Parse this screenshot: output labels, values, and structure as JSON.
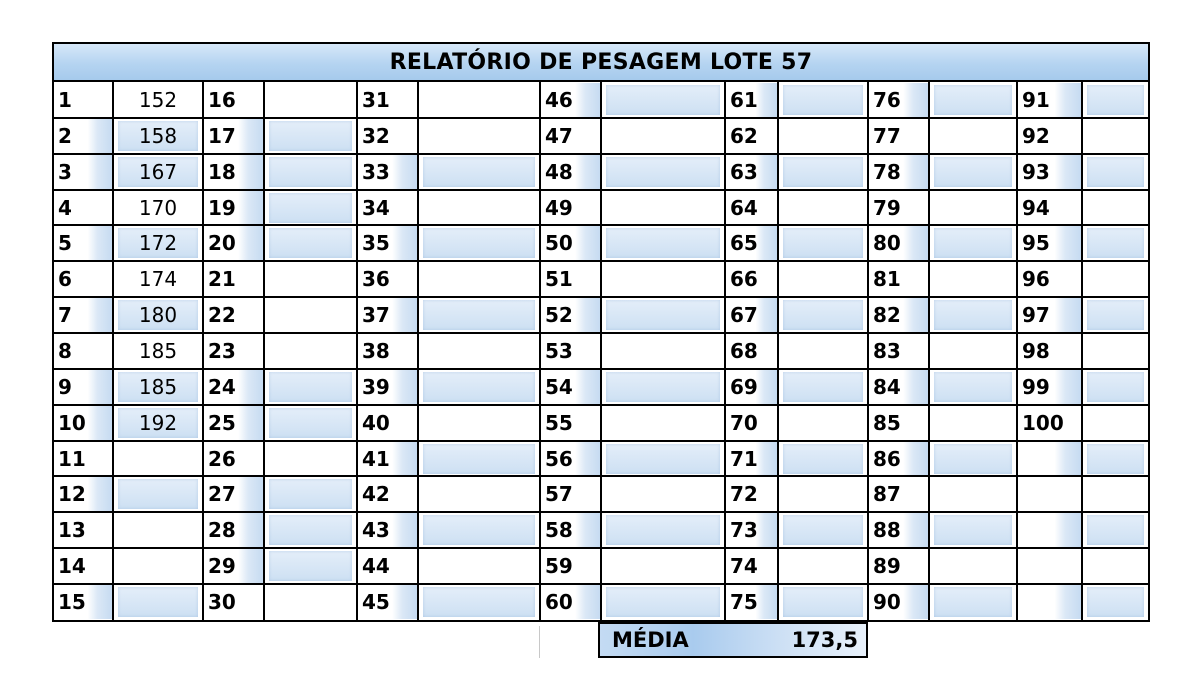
{
  "report": {
    "title": "RELATÓRIO DE PESAGEM LOTE 57",
    "columns": [
      {
        "rows": [
          {
            "n": "1",
            "w": "152",
            "shade": false
          },
          {
            "n": "2",
            "w": "158",
            "shade": true
          },
          {
            "n": "3",
            "w": "167",
            "shade": true
          },
          {
            "n": "4",
            "w": "170",
            "shade": false
          },
          {
            "n": "5",
            "w": "172",
            "shade": true
          },
          {
            "n": "6",
            "w": "174",
            "shade": false
          },
          {
            "n": "7",
            "w": "180",
            "shade": true
          },
          {
            "n": "8",
            "w": "185",
            "shade": false
          },
          {
            "n": "9",
            "w": "185",
            "shade": true
          },
          {
            "n": "10",
            "w": "192",
            "shade": true
          },
          {
            "n": "11",
            "w": "",
            "shade": false
          },
          {
            "n": "12",
            "w": "",
            "shade": true
          },
          {
            "n": "13",
            "w": "",
            "shade": false
          },
          {
            "n": "14",
            "w": "",
            "shade": false
          },
          {
            "n": "15",
            "w": "",
            "shade": true
          }
        ]
      },
      {
        "rows": [
          {
            "n": "16",
            "w": "",
            "shade": false
          },
          {
            "n": "17",
            "w": "",
            "shade": true
          },
          {
            "n": "18",
            "w": "",
            "shade": true
          },
          {
            "n": "19",
            "w": "",
            "shade": true
          },
          {
            "n": "20",
            "w": "",
            "shade": true
          },
          {
            "n": "21",
            "w": "",
            "shade": false
          },
          {
            "n": "22",
            "w": "",
            "shade": false
          },
          {
            "n": "23",
            "w": "",
            "shade": false
          },
          {
            "n": "24",
            "w": "",
            "shade": true
          },
          {
            "n": "25",
            "w": "",
            "shade": true
          },
          {
            "n": "26",
            "w": "",
            "shade": false
          },
          {
            "n": "27",
            "w": "",
            "shade": true
          },
          {
            "n": "28",
            "w": "",
            "shade": true
          },
          {
            "n": "29",
            "w": "",
            "shade": true
          },
          {
            "n": "30",
            "w": "",
            "shade": false
          }
        ]
      },
      {
        "rows": [
          {
            "n": "31",
            "w": "",
            "shade": false
          },
          {
            "n": "32",
            "w": "",
            "shade": false
          },
          {
            "n": "33",
            "w": "",
            "shade": true
          },
          {
            "n": "34",
            "w": "",
            "shade": false
          },
          {
            "n": "35",
            "w": "",
            "shade": true
          },
          {
            "n": "36",
            "w": "",
            "shade": false
          },
          {
            "n": "37",
            "w": "",
            "shade": true
          },
          {
            "n": "38",
            "w": "",
            "shade": false
          },
          {
            "n": "39",
            "w": "",
            "shade": true
          },
          {
            "n": "40",
            "w": "",
            "shade": false
          },
          {
            "n": "41",
            "w": "",
            "shade": true
          },
          {
            "n": "42",
            "w": "",
            "shade": false
          },
          {
            "n": "43",
            "w": "",
            "shade": true
          },
          {
            "n": "44",
            "w": "",
            "shade": false
          },
          {
            "n": "45",
            "w": "",
            "shade": true
          }
        ]
      },
      {
        "rows": [
          {
            "n": "46",
            "w": "",
            "shade": true
          },
          {
            "n": "47",
            "w": "",
            "shade": false
          },
          {
            "n": "48",
            "w": "",
            "shade": true
          },
          {
            "n": "49",
            "w": "",
            "shade": false
          },
          {
            "n": "50",
            "w": "",
            "shade": true
          },
          {
            "n": "51",
            "w": "",
            "shade": false
          },
          {
            "n": "52",
            "w": "",
            "shade": true
          },
          {
            "n": "53",
            "w": "",
            "shade": false
          },
          {
            "n": "54",
            "w": "",
            "shade": true
          },
          {
            "n": "55",
            "w": "",
            "shade": false
          },
          {
            "n": "56",
            "w": "",
            "shade": true
          },
          {
            "n": "57",
            "w": "",
            "shade": false
          },
          {
            "n": "58",
            "w": "",
            "shade": true
          },
          {
            "n": "59",
            "w": "",
            "shade": false
          },
          {
            "n": "60",
            "w": "",
            "shade": true
          }
        ]
      },
      {
        "rows": [
          {
            "n": "61",
            "w": "",
            "shade": true
          },
          {
            "n": "62",
            "w": "",
            "shade": false
          },
          {
            "n": "63",
            "w": "",
            "shade": true
          },
          {
            "n": "64",
            "w": "",
            "shade": false
          },
          {
            "n": "65",
            "w": "",
            "shade": true
          },
          {
            "n": "66",
            "w": "",
            "shade": false
          },
          {
            "n": "67",
            "w": "",
            "shade": true
          },
          {
            "n": "68",
            "w": "",
            "shade": false
          },
          {
            "n": "69",
            "w": "",
            "shade": true
          },
          {
            "n": "70",
            "w": "",
            "shade": false
          },
          {
            "n": "71",
            "w": "",
            "shade": true
          },
          {
            "n": "72",
            "w": "",
            "shade": false
          },
          {
            "n": "73",
            "w": "",
            "shade": true
          },
          {
            "n": "74",
            "w": "",
            "shade": false
          },
          {
            "n": "75",
            "w": "",
            "shade": true
          }
        ]
      },
      {
        "rows": [
          {
            "n": "76",
            "w": "",
            "shade": true
          },
          {
            "n": "77",
            "w": "",
            "shade": false
          },
          {
            "n": "78",
            "w": "",
            "shade": true
          },
          {
            "n": "79",
            "w": "",
            "shade": false
          },
          {
            "n": "80",
            "w": "",
            "shade": true
          },
          {
            "n": "81",
            "w": "",
            "shade": false
          },
          {
            "n": "82",
            "w": "",
            "shade": true
          },
          {
            "n": "83",
            "w": "",
            "shade": false
          },
          {
            "n": "84",
            "w": "",
            "shade": true
          },
          {
            "n": "85",
            "w": "",
            "shade": false
          },
          {
            "n": "86",
            "w": "",
            "shade": true
          },
          {
            "n": "87",
            "w": "",
            "shade": false
          },
          {
            "n": "88",
            "w": "",
            "shade": true
          },
          {
            "n": "89",
            "w": "",
            "shade": false
          },
          {
            "n": "90",
            "w": "",
            "shade": true
          }
        ]
      },
      {
        "rows": [
          {
            "n": "91",
            "w": "",
            "shade": true
          },
          {
            "n": "92",
            "w": "",
            "shade": false
          },
          {
            "n": "93",
            "w": "",
            "shade": true
          },
          {
            "n": "94",
            "w": "",
            "shade": false
          },
          {
            "n": "95",
            "w": "",
            "shade": true
          },
          {
            "n": "96",
            "w": "",
            "shade": false
          },
          {
            "n": "97",
            "w": "",
            "shade": true
          },
          {
            "n": "98",
            "w": "",
            "shade": false
          },
          {
            "n": "99",
            "w": "",
            "shade": true
          },
          {
            "n": "100",
            "w": "",
            "shade": false
          },
          {
            "n": "",
            "w": "",
            "shade": true
          },
          {
            "n": "",
            "w": "",
            "shade": false
          },
          {
            "n": "",
            "w": "",
            "shade": true
          },
          {
            "n": "",
            "w": "",
            "shade": false
          },
          {
            "n": "",
            "w": "",
            "shade": true
          }
        ]
      }
    ],
    "average": {
      "label": "MÉDIA",
      "value": "173,5"
    }
  },
  "colors": {
    "header_fill": "#b5d4f1",
    "cell_shade": "#cde0f3",
    "border": "#000000"
  }
}
